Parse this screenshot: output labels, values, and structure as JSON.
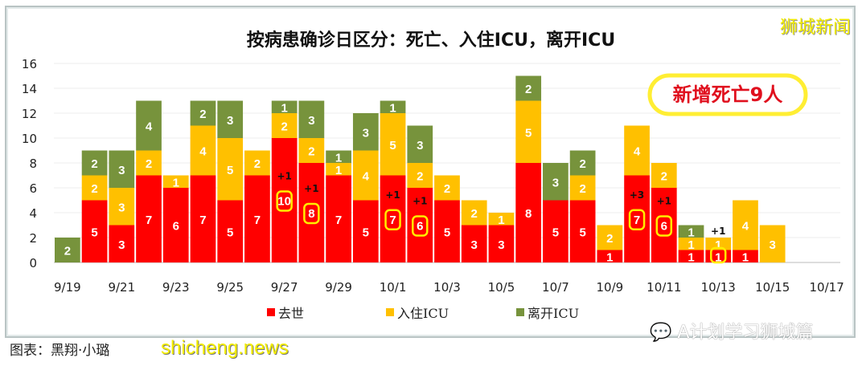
{
  "chart_data": {
    "type": "bar",
    "stacked": true,
    "title": "按病患确诊日区分：死亡、入住ICU，离开ICU",
    "xlabel": "",
    "ylabel": "",
    "ylim": [
      0,
      16
    ],
    "yticks": [
      0,
      2,
      4,
      6,
      8,
      10,
      12,
      14,
      16
    ],
    "grid": true,
    "legend_position": "bottom",
    "categories": [
      "9/19",
      "9/20",
      "9/21",
      "9/22",
      "9/23",
      "9/24",
      "9/25",
      "9/26",
      "9/27",
      "9/28",
      "9/29",
      "9/30",
      "10/1",
      "10/2",
      "10/3",
      "10/4",
      "10/5",
      "10/6",
      "10/7",
      "10/8",
      "10/9",
      "10/10",
      "10/11",
      "10/12",
      "10/13",
      "10/14",
      "10/15",
      "10/16",
      "10/17"
    ],
    "xtick_labels": [
      "9/19",
      "9/21",
      "9/23",
      "9/25",
      "9/27",
      "9/29",
      "10/1",
      "10/3",
      "10/5",
      "10/7",
      "10/9",
      "10/11",
      "10/13",
      "10/15",
      "10/17"
    ],
    "series": [
      {
        "name": "去世",
        "color": "#ff0000",
        "values": [
          0,
          5,
          3,
          7,
          6,
          7,
          5,
          7,
          10,
          8,
          7,
          5,
          7,
          6,
          5,
          3,
          3,
          8,
          5,
          5,
          1,
          7,
          6,
          1,
          1,
          1,
          0,
          0,
          0
        ]
      },
      {
        "name": "入住ICU",
        "color": "#ffc000",
        "values": [
          0,
          2,
          3,
          2,
          1,
          4,
          5,
          2,
          2,
          2,
          1,
          4,
          5,
          2,
          2,
          2,
          1,
          5,
          0,
          2,
          2,
          4,
          2,
          1,
          1,
          4,
          3,
          0,
          0
        ]
      },
      {
        "name": "离开ICU",
        "color": "#77933c",
        "values": [
          2,
          2,
          3,
          4,
          0,
          2,
          3,
          0,
          1,
          3,
          1,
          3,
          1,
          3,
          0,
          0,
          0,
          2,
          3,
          2,
          0,
          0,
          0,
          1,
          0,
          0,
          0,
          0,
          0
        ]
      }
    ],
    "annotations": [
      {
        "category": "9/27",
        "text": "+1"
      },
      {
        "category": "9/28",
        "text": "+1"
      },
      {
        "category": "10/1",
        "text": "+1"
      },
      {
        "category": "10/2",
        "text": "+1"
      },
      {
        "category": "10/10",
        "text": "+3"
      },
      {
        "category": "10/11",
        "text": "+1"
      },
      {
        "category": "10/13",
        "text": "+1"
      }
    ],
    "callout": "新增死亡9人"
  },
  "credit": "图表：黑翔·小璐",
  "watermarks": {
    "top_right": "狮城新闻",
    "bottom_right": "A计划学习狮城篇",
    "bottom_left": "shicheng.news"
  }
}
